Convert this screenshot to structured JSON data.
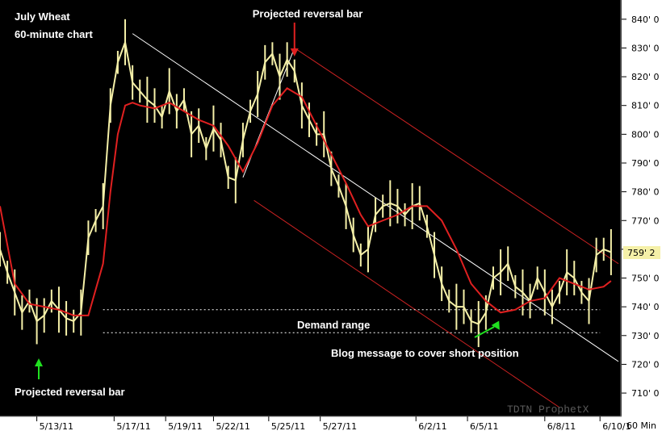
{
  "chart_data": {
    "type": "line",
    "title": "July Wheat",
    "subtitle": "60-minute chart",
    "period_label": "60 Min",
    "watermark": "TDTN ProphetX",
    "current_price": "759' 2",
    "colors": {
      "background": "#000000",
      "price": "#f5f0a8",
      "moving_average": "#e02020",
      "channel": "#cc2222",
      "trendline": "#ffffff",
      "axis_panel": "#ffffff",
      "price_box": "#f5f0a8"
    },
    "y_axis": {
      "min": 703,
      "max": 845,
      "ticks": [
        "840' 0",
        "830' 0",
        "820' 0",
        "810' 0",
        "800' 0",
        "790' 0",
        "780' 0",
        "770' 0",
        "760' 0",
        "750' 0",
        "740' 0",
        "730' 0",
        "720' 0",
        "710' 0"
      ],
      "tick_values": [
        840,
        830,
        820,
        810,
        800,
        790,
        780,
        770,
        760,
        750,
        740,
        730,
        720,
        710
      ]
    },
    "x_axis": {
      "ticks": [
        "5/13/11",
        "5/17/11",
        "5/19/11",
        "5/22/11",
        "5/25/11",
        "5/27/11",
        "6/2/11",
        "6/5/11",
        "6/8/11",
        "6/10/1"
      ],
      "tick_positions": [
        10,
        31,
        45,
        58,
        73,
        87,
        113,
        127,
        148,
        163
      ],
      "range": [
        0,
        168
      ]
    },
    "series": [
      {
        "name": "",
        "kind": "price",
        "x": [
          0,
          2,
          4,
          6,
          8,
          10,
          12,
          14,
          16,
          18,
          20,
          22,
          24,
          26,
          28,
          30,
          32,
          34,
          36,
          38,
          40,
          42,
          44,
          46,
          48,
          50,
          52,
          54,
          56,
          58,
          60,
          62,
          64,
          66,
          68,
          70,
          72,
          74,
          76,
          78,
          80,
          82,
          84,
          86,
          88,
          90,
          92,
          94,
          96,
          98,
          100,
          102,
          104,
          106,
          108,
          110,
          112,
          114,
          116,
          118,
          120,
          122,
          124,
          126,
          128,
          130,
          132,
          134,
          136,
          138,
          140,
          142,
          144,
          146,
          148,
          150,
          152,
          154,
          156,
          158,
          160,
          162,
          164,
          166
        ],
        "y": [
          760,
          752,
          745,
          738,
          742,
          735,
          737,
          742,
          739,
          736,
          735,
          738,
          764,
          770,
          775,
          810,
          825,
          832,
          818,
          815,
          812,
          810,
          806,
          815,
          808,
          812,
          800,
          803,
          795,
          802,
          798,
          785,
          784,
          798,
          808,
          814,
          825,
          828,
          820,
          826,
          822,
          810,
          805,
          800,
          800,
          788,
          782,
          775,
          765,
          758,
          760,
          772,
          775,
          776,
          775,
          772,
          775,
          776,
          768,
          758,
          748,
          742,
          740,
          740,
          735,
          734,
          738,
          750,
          752,
          755,
          747,
          745,
          742,
          750,
          745,
          740,
          745,
          752,
          750,
          745,
          742,
          758,
          760,
          759
        ]
      },
      {
        "name": "",
        "kind": "moving_average",
        "x": [
          0,
          4,
          8,
          12,
          16,
          20,
          24,
          28,
          30,
          32,
          34,
          36,
          38,
          42,
          46,
          50,
          54,
          58,
          62,
          66,
          70,
          74,
          78,
          82,
          86,
          90,
          94,
          98,
          100,
          104,
          108,
          112,
          116,
          120,
          124,
          128,
          132,
          136,
          140,
          144,
          148,
          152,
          156,
          160,
          164,
          166
        ],
        "y": [
          775,
          748,
          741,
          740,
          739,
          737,
          737,
          755,
          780,
          800,
          810,
          811,
          810,
          809,
          811,
          808,
          805,
          803,
          796,
          787,
          797,
          810,
          816,
          813,
          803,
          793,
          783,
          772,
          768,
          770,
          772,
          775,
          775,
          770,
          760,
          748,
          742,
          738,
          739,
          742,
          743,
          750,
          748,
          746,
          747,
          749
        ]
      }
    ],
    "lines": [
      {
        "name": "",
        "kind": "channel",
        "x": [
          80,
          168
        ],
        "y": [
          830,
          755
        ]
      },
      {
        "name": "",
        "kind": "channel",
        "x": [
          69,
          152
        ],
        "y": [
          777,
          705
        ]
      },
      {
        "name": "",
        "kind": "trendline",
        "x": [
          36,
          168
        ],
        "y": [
          835,
          721
        ]
      },
      {
        "name": "",
        "kind": "trendline",
        "x": [
          66,
          80
        ],
        "y": [
          785,
          830
        ]
      },
      {
        "name": "",
        "kind": "demand_range",
        "x": [
          28,
          163
        ],
        "y": [
          739,
          739
        ]
      },
      {
        "name": "",
        "kind": "demand_range",
        "x": [
          28,
          163
        ],
        "y": [
          731,
          731
        ]
      }
    ],
    "annotations": [
      {
        "name": "projected-reversal-top",
        "text": "Projected reversal bar",
        "x": 80,
        "y": 841,
        "arrow_color": "#e02020"
      },
      {
        "name": "projected-reversal-bottom",
        "text": "Projected reversal bar",
        "x": 8,
        "y": 715,
        "arrow_color": "#20e020"
      },
      {
        "name": "demand-range",
        "text": "Demand range",
        "x": 73,
        "y": 733
      },
      {
        "name": "blog-message",
        "text": "Blog message to cover short position",
        "x": 80,
        "y": 724,
        "arrow_color": "#20e020"
      }
    ]
  }
}
